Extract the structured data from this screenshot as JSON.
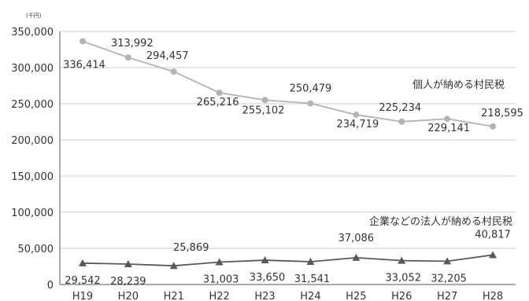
{
  "chart_data": {
    "type": "line",
    "unit": "(千円)",
    "categories": [
      "H19",
      "H20",
      "H21",
      "H22",
      "H23",
      "H24",
      "H25",
      "H26",
      "H27",
      "H28"
    ],
    "yticks": [
      "0",
      "50,000",
      "100,000",
      "150,000",
      "200,000",
      "250,000",
      "300,000",
      "350,000"
    ],
    "ylim": [
      0,
      350000
    ],
    "grid": true,
    "series": [
      {
        "name": "個人が納める村民税",
        "color": "#b4b4b4",
        "marker": "circle",
        "values": [
          336414,
          313992,
          294457,
          265216,
          255102,
          250479,
          234719,
          225234,
          229141,
          218595
        ],
        "labels": [
          "336,414",
          "313,992",
          "294,457",
          "265,216",
          "255,102",
          "250,479",
          "234,719",
          "225,234",
          "229,141",
          "218,595"
        ]
      },
      {
        "name": "企業などの法人が納める村民税",
        "color": "#595959",
        "marker": "triangle",
        "values": [
          29542,
          28239,
          25869,
          31003,
          33650,
          31541,
          37086,
          33052,
          32205,
          40817
        ],
        "labels": [
          "29,542",
          "28,239",
          "25,869",
          "31,003",
          "33,650",
          "31,541",
          "37,086",
          "33,052",
          "32,205",
          "40,817"
        ]
      }
    ]
  }
}
